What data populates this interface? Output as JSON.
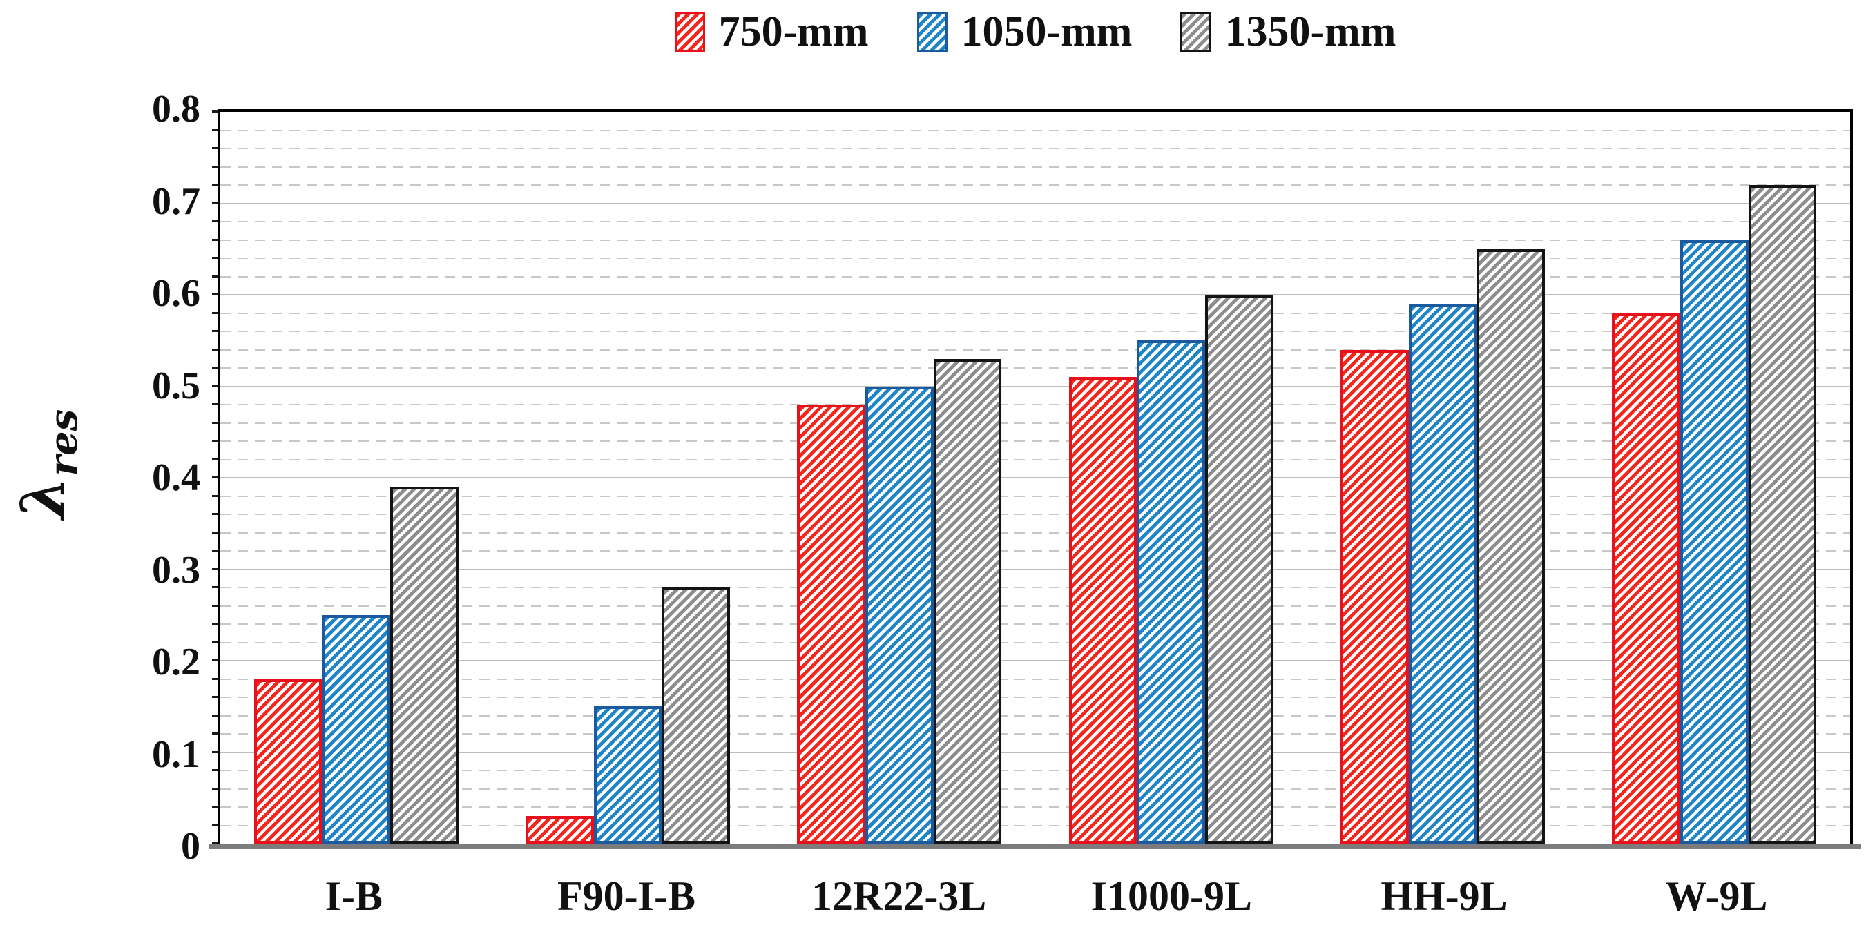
{
  "chart_data": {
    "type": "bar",
    "title": "",
    "categories": [
      "I-B",
      "F90-I-B",
      "12R22-3L",
      "I1000-9L",
      "HH-9L",
      "W-9L"
    ],
    "series": [
      {
        "name": "750-mm",
        "color": "#f3271e",
        "border_color": "#e8111b",
        "hatch": "diagonal-forward",
        "values": [
          0.18,
          0.03,
          0.48,
          0.51,
          0.54,
          0.58
        ]
      },
      {
        "name": "1050-mm",
        "color": "#1e85c9",
        "border_color": "#1b5a9e",
        "hatch": "diagonal-forward",
        "values": [
          0.25,
          0.15,
          0.5,
          0.55,
          0.59,
          0.66
        ]
      },
      {
        "name": "1350-mm",
        "color": "#8d8d8d",
        "border_color": "#141414",
        "hatch": "diagonal-forward",
        "values": [
          0.39,
          0.28,
          0.53,
          0.6,
          0.65,
          0.72
        ]
      }
    ],
    "xlabel": "",
    "ylabel": "λres",
    "ylabel_main": "λ",
    "ylabel_sub": "res",
    "ylim": [
      0,
      0.8
    ],
    "ytick_labels": [
      "0.8",
      "0.7",
      "0.6",
      "0.5",
      "0.4",
      "0.3",
      "0.2",
      "0.1",
      "0"
    ],
    "major_grid_step": 0.1,
    "minor_grid_step": 0.02,
    "grid": "major-solid-light-gray, minor-dashed-light-gray",
    "legend_position": "top-center",
    "colors": {
      "axis_frame": "#000000",
      "baseline": "#7c7c7c",
      "major_grid": "#bdbdbd",
      "minor_grid": "#c7c7c7",
      "text": "#111111"
    }
  }
}
